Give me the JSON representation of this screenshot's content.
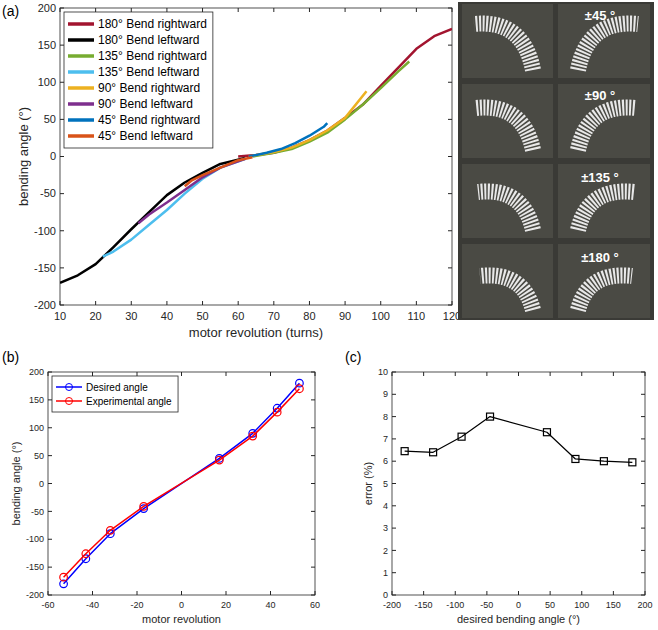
{
  "chart_data": [
    {
      "panel": "(a)",
      "type": "line",
      "x_label": "motor revolution (turns)",
      "y_label": "bending angle (°)",
      "xlim": [
        10,
        120
      ],
      "xticks": [
        10,
        20,
        30,
        40,
        50,
        60,
        70,
        80,
        90,
        100,
        110,
        120
      ],
      "ylim": [
        -200,
        200
      ],
      "yticks": [
        -200,
        -150,
        -100,
        -50,
        0,
        50,
        100,
        150,
        200
      ],
      "grid": false,
      "legend": "upper left",
      "series": [
        {
          "name": "180° Bend rightward",
          "color": "#a2142f",
          "x": [
            60,
            65,
            70,
            75,
            80,
            85,
            90,
            95,
            100,
            105,
            110,
            115,
            120
          ],
          "values": [
            0,
            2,
            5,
            12,
            22,
            35,
            52,
            70,
            95,
            120,
            145,
            162,
            172
          ]
        },
        {
          "name": "180° Bend leftward",
          "color": "#000000",
          "x": [
            62,
            55,
            50,
            45,
            40,
            35,
            30,
            25,
            20,
            15,
            10
          ],
          "values": [
            -2,
            -10,
            -22,
            -35,
            -52,
            -75,
            -98,
            -122,
            -145,
            -160,
            -170
          ]
        },
        {
          "name": "135° Bend rightward",
          "color": "#77ac30",
          "x": [
            64,
            70,
            75,
            80,
            85,
            90,
            95,
            100,
            105,
            108
          ],
          "values": [
            0,
            5,
            10,
            20,
            32,
            50,
            70,
            92,
            115,
            128
          ]
        },
        {
          "name": "135° Bend leftward",
          "color": "#4dbeee",
          "x": [
            62,
            55,
            50,
            45,
            40,
            35,
            30,
            25,
            22
          ],
          "values": [
            -3,
            -15,
            -30,
            -50,
            -72,
            -92,
            -112,
            -128,
            -135
          ]
        },
        {
          "name": "90° Bend rightward",
          "color": "#edb120",
          "x": [
            63,
            70,
            75,
            80,
            85,
            90,
            96
          ],
          "values": [
            0,
            6,
            12,
            22,
            35,
            52,
            88
          ]
        },
        {
          "name": "90° Bend leftward",
          "color": "#7e2f8e",
          "x": [
            62,
            55,
            50,
            45,
            40,
            35,
            32
          ],
          "values": [
            -3,
            -15,
            -28,
            -45,
            -62,
            -78,
            -90
          ]
        },
        {
          "name": "45° Bend rightward",
          "color": "#0072bd",
          "x": [
            63,
            68,
            72,
            76,
            80,
            84,
            85
          ],
          "values": [
            0,
            5,
            10,
            18,
            28,
            40,
            45
          ]
        },
        {
          "name": "45° Bend leftward",
          "color": "#d95319",
          "x": [
            64,
            60,
            55,
            50,
            47,
            45
          ],
          "values": [
            -1,
            -5,
            -15,
            -25,
            -32,
            -40
          ]
        }
      ]
    },
    {
      "panel": "(b)",
      "type": "line",
      "x_label": "motor revolution",
      "y_label": "bending angle (°)",
      "xlim": [
        -60,
        60
      ],
      "xticks": [
        -60,
        -40,
        -20,
        0,
        20,
        40,
        60
      ],
      "ylim": [
        -200,
        200
      ],
      "yticks": [
        -200,
        -150,
        -100,
        -50,
        0,
        50,
        100,
        150,
        200
      ],
      "grid": false,
      "legend": "upper left",
      "series": [
        {
          "name": "Desired angle",
          "color": "#0000ff",
          "marker": "circle",
          "x": [
            -53,
            -43,
            -32,
            -17,
            17,
            32,
            43,
            53
          ],
          "values": [
            -180,
            -135,
            -90,
            -45,
            45,
            90,
            135,
            180
          ]
        },
        {
          "name": "Experimental angle",
          "color": "#ff0000",
          "marker": "circle",
          "x": [
            -53,
            -43,
            -32,
            -17,
            17,
            32,
            43,
            53
          ],
          "values": [
            -168,
            -126,
            -84,
            -41,
            42,
            85,
            128,
            170
          ]
        }
      ]
    },
    {
      "panel": "(c)",
      "type": "line",
      "x_label": "desired bending angle (°)",
      "y_label": "error (%)",
      "xlim": [
        -200,
        200
      ],
      "xticks": [
        -200,
        -150,
        -100,
        -50,
        0,
        50,
        100,
        150,
        200
      ],
      "ylim": [
        0,
        10
      ],
      "yticks": [
        0,
        1,
        2,
        3,
        4,
        5,
        6,
        7,
        8,
        9,
        10
      ],
      "grid": false,
      "series": [
        {
          "color": "#000000",
          "marker": "square",
          "x": [
            -180,
            -135,
            -90,
            -45,
            45,
            90,
            135,
            180
          ],
          "values": [
            6.45,
            6.4,
            7.1,
            8.0,
            7.3,
            6.1,
            6.0,
            5.95
          ]
        }
      ]
    }
  ],
  "photos": {
    "labels": [
      "±45 °",
      "±90 °",
      "±135 °",
      "±180 °"
    ]
  }
}
